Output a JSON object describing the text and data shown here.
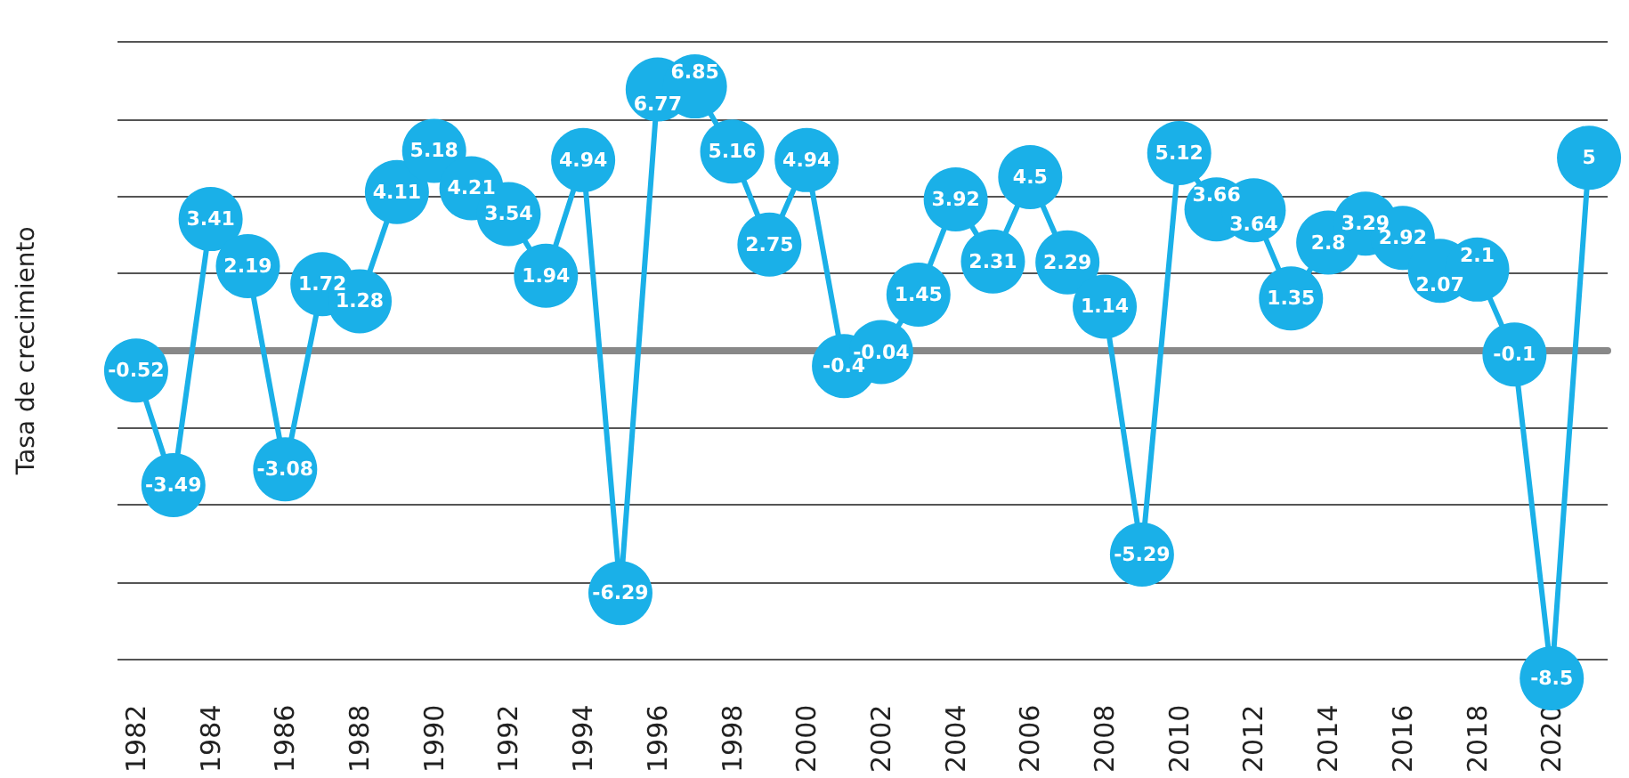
{
  "chart_data": {
    "type": "line",
    "ylabel": "Tasa de crecimiento",
    "categories": [
      "1982",
      null,
      "1984",
      null,
      "1986",
      null,
      "1988",
      null,
      "1990",
      null,
      "1992",
      null,
      "1994",
      null,
      "1996",
      null,
      "1998",
      null,
      "2000",
      null,
      "2002",
      null,
      "2004",
      null,
      "2006",
      null,
      "2008",
      null,
      "2010",
      null,
      "2012",
      null,
      "2014",
      null,
      "2016",
      null,
      "2018",
      null,
      "2020",
      null
    ],
    "series": [
      {
        "color": "#1ab0e8",
        "values": [
          -0.52,
          -3.49,
          3.41,
          2.19,
          -3.08,
          1.72,
          1.28,
          4.11,
          5.18,
          4.21,
          3.54,
          1.94,
          4.94,
          -6.29,
          6.77,
          6.85,
          5.16,
          2.75,
          4.94,
          -0.4,
          -0.04,
          1.45,
          3.92,
          2.31,
          4.5,
          2.29,
          1.14,
          -5.29,
          5.12,
          3.66,
          3.64,
          1.35,
          2.8,
          3.29,
          2.92,
          2.07,
          2.1,
          -0.1,
          -8.5,
          5
        ]
      }
    ],
    "yticks": [
      {
        "value": -8,
        "label": null
      },
      {
        "value": -6,
        "label": null
      },
      {
        "value": -4,
        "label": null
      },
      {
        "value": -2,
        "label": null
      },
      {
        "value": 0,
        "label": null
      },
      {
        "value": 2,
        "label": null
      },
      {
        "value": 4,
        "label": null
      },
      {
        "value": 6,
        "label": null
      },
      {
        "value": 8,
        "label": null
      }
    ],
    "tick_labels": "x",
    "grid": "y",
    "marker": "circle",
    "line_style": "solid",
    "data_labels": true
  }
}
